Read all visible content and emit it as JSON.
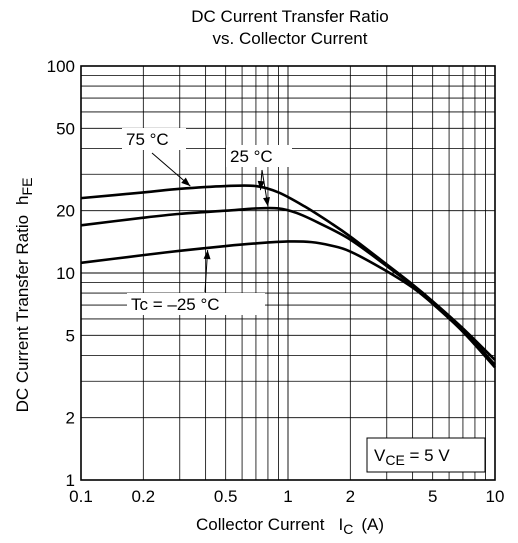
{
  "chart_data": {
    "type": "line",
    "title_line1": "DC Current Transfer Ratio",
    "title_line2": "vs. Collector Current",
    "xlabel_main": "Collector Current",
    "xlabel_sym": "I",
    "xlabel_sub": "C",
    "xlabel_unit": "(A)",
    "ylabel_main": "DC Current Transfer Ratio",
    "ylabel_sym": "h",
    "ylabel_sub": "FE",
    "x_scale": "log",
    "y_scale": "log",
    "xlim": [
      0.1,
      10
    ],
    "ylim": [
      1,
      100
    ],
    "grid": true,
    "x_ticks": [
      {
        "value": 0.1,
        "label": "0.1"
      },
      {
        "value": 0.2,
        "label": "0.2"
      },
      {
        "value": 0.5,
        "label": "0.5"
      },
      {
        "value": 1,
        "label": "1"
      },
      {
        "value": 2,
        "label": "2"
      },
      {
        "value": 5,
        "label": "5"
      },
      {
        "value": 10,
        "label": "10"
      }
    ],
    "y_ticks": [
      {
        "value": 1,
        "label": "1"
      },
      {
        "value": 2,
        "label": "2"
      },
      {
        "value": 5,
        "label": "5"
      },
      {
        "value": 10,
        "label": "10"
      },
      {
        "value": 20,
        "label": "20"
      },
      {
        "value": 50,
        "label": "50"
      },
      {
        "value": 100,
        "label": "100"
      }
    ],
    "series": [
      {
        "name": "75 °C",
        "x": [
          0.1,
          0.2,
          0.3,
          0.5,
          0.7,
          0.9,
          1.2,
          1.6,
          2,
          3,
          4,
          5,
          7,
          10
        ],
        "y": [
          23,
          24.5,
          25.5,
          26.3,
          26.3,
          24.5,
          21,
          17.5,
          15,
          11,
          8.8,
          7.3,
          5.4,
          3.8
        ]
      },
      {
        "name": "25 °C",
        "x": [
          0.1,
          0.2,
          0.3,
          0.5,
          0.7,
          0.9,
          1.1,
          1.4,
          2,
          3,
          4,
          5,
          7,
          10
        ],
        "y": [
          17,
          18.5,
          19.3,
          20,
          20.5,
          20.5,
          19.5,
          17.5,
          14.5,
          10.8,
          8.7,
          7.2,
          5.3,
          3.6
        ]
      },
      {
        "name": "Tc = –25 °C",
        "x": [
          0.1,
          0.2,
          0.3,
          0.5,
          0.7,
          1,
          1.3,
          1.6,
          2,
          3,
          4,
          5,
          7,
          10
        ],
        "y": [
          11.2,
          12.2,
          12.8,
          13.5,
          13.9,
          14.2,
          14.1,
          13.6,
          12.7,
          10.2,
          8.5,
          7.1,
          5.2,
          3.5
        ]
      }
    ],
    "annotations": [
      {
        "text": "75 °C",
        "arrow_x": 0.33,
        "arrow_y": 25.7
      },
      {
        "text": "25 °C",
        "arrow_x": 0.8,
        "arrow_y": 20.5
      },
      {
        "text": "25 °C",
        "arrow_x": 0.72,
        "arrow_y": 25.7
      },
      {
        "text": "Tc = –25 °C",
        "arrow_x": 0.4,
        "arrow_y": 13.2
      }
    ],
    "condition": {
      "sym": "V",
      "sub": "CE",
      "rest": " = 5 V"
    }
  }
}
